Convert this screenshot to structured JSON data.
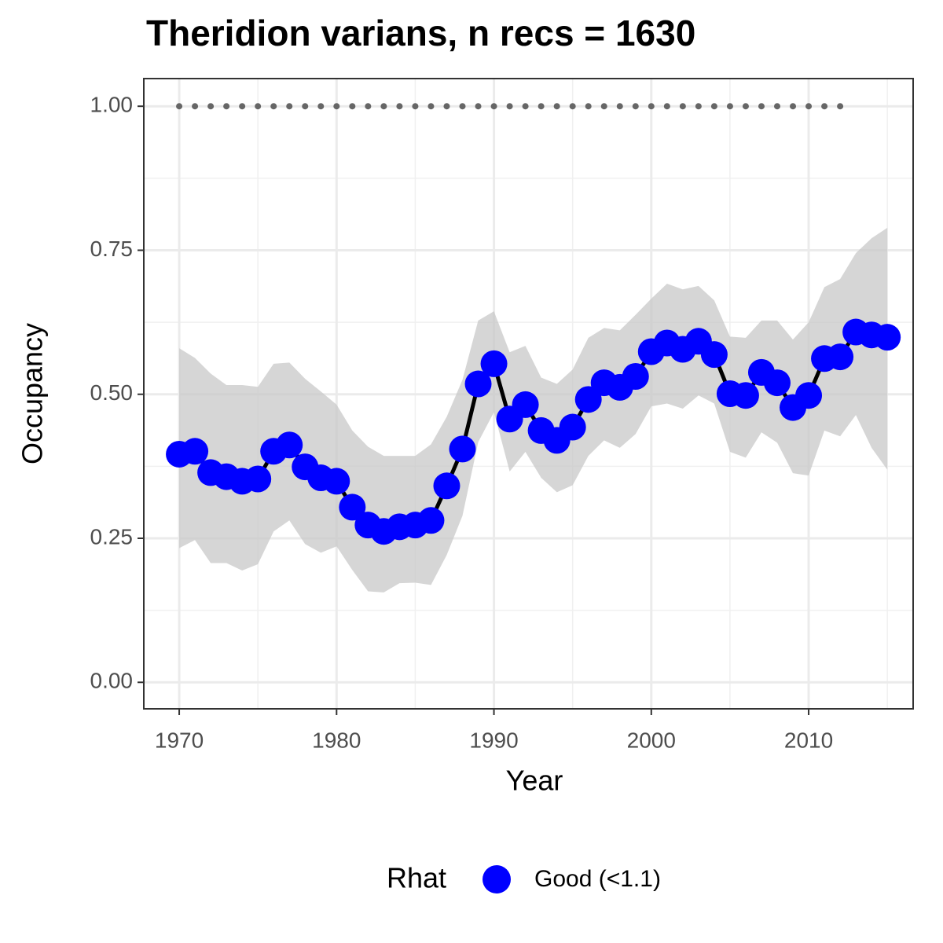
{
  "chart_data": {
    "type": "line",
    "title": "Theridion varians, n recs = 1630",
    "x_label": "Year",
    "y_label": "Occupancy",
    "legend_title": "Rhat",
    "legend_position": "bottom",
    "x": [
      1970,
      1971,
      1972,
      1973,
      1974,
      1975,
      1976,
      1977,
      1978,
      1979,
      1980,
      1981,
      1982,
      1983,
      1984,
      1985,
      1986,
      1987,
      1988,
      1989,
      1990,
      1991,
      1992,
      1993,
      1994,
      1995,
      1996,
      1997,
      1998,
      1999,
      2000,
      2001,
      2002,
      2003,
      2004,
      2005,
      2006,
      2007,
      2008,
      2009,
      2010,
      2011,
      2012,
      2013,
      2014,
      2015
    ],
    "series": [
      {
        "name": "Good (<1.1)",
        "color": "#0000ff",
        "line_color": "#000000",
        "values": [
          0.396,
          0.401,
          0.364,
          0.357,
          0.349,
          0.353,
          0.401,
          0.412,
          0.374,
          0.355,
          0.349,
          0.304,
          0.273,
          0.262,
          0.27,
          0.273,
          0.281,
          0.341,
          0.405,
          0.518,
          0.553,
          0.457,
          0.482,
          0.437,
          0.42,
          0.443,
          0.491,
          0.52,
          0.512,
          0.531,
          0.574,
          0.589,
          0.578,
          0.592,
          0.569,
          0.501,
          0.498,
          0.538,
          0.52,
          0.477,
          0.498,
          0.562,
          0.565,
          0.608,
          0.603,
          0.599
        ],
        "upper": [
          0.58,
          0.563,
          0.536,
          0.516,
          0.516,
          0.513,
          0.553,
          0.555,
          0.527,
          0.505,
          0.482,
          0.437,
          0.409,
          0.393,
          0.393,
          0.393,
          0.413,
          0.461,
          0.525,
          0.628,
          0.644,
          0.573,
          0.584,
          0.529,
          0.518,
          0.543,
          0.598,
          0.615,
          0.611,
          0.638,
          0.666,
          0.692,
          0.682,
          0.688,
          0.663,
          0.6,
          0.598,
          0.628,
          0.628,
          0.595,
          0.625,
          0.686,
          0.7,
          0.745,
          0.771,
          0.789
        ],
        "lower": [
          0.233,
          0.247,
          0.207,
          0.207,
          0.194,
          0.205,
          0.262,
          0.281,
          0.24,
          0.225,
          0.236,
          0.195,
          0.158,
          0.156,
          0.172,
          0.173,
          0.169,
          0.221,
          0.289,
          0.417,
          0.469,
          0.366,
          0.4,
          0.355,
          0.33,
          0.342,
          0.393,
          0.42,
          0.407,
          0.431,
          0.479,
          0.484,
          0.475,
          0.498,
          0.484,
          0.4,
          0.39,
          0.434,
          0.416,
          0.363,
          0.359,
          0.437,
          0.427,
          0.464,
          0.407,
          0.369
        ],
        "band_color": "#c8c8c8"
      }
    ],
    "dotted_line": {
      "y": 1,
      "x": [
        1970,
        2013
      ],
      "color": "#666666"
    },
    "xlim": [
      1967.75,
      2016.64
    ],
    "ylim": [
      -0.046,
      1.048
    ],
    "xticks": [
      1970,
      1980,
      1990,
      2000,
      2010
    ],
    "yticks": [
      {
        "value": 0,
        "label": "0.00"
      },
      {
        "value": 0.25,
        "label": "0.25"
      },
      {
        "value": 0.5,
        "label": "0.50"
      },
      {
        "value": 0.75,
        "label": "0.75"
      },
      {
        "value": 1,
        "label": "1.00"
      }
    ],
    "x_minor_grid": [
      1975,
      1985,
      1995,
      2005,
      2015
    ],
    "y_minor_grid": [
      0.125,
      0.375,
      0.625,
      0.875
    ],
    "grid": true
  }
}
